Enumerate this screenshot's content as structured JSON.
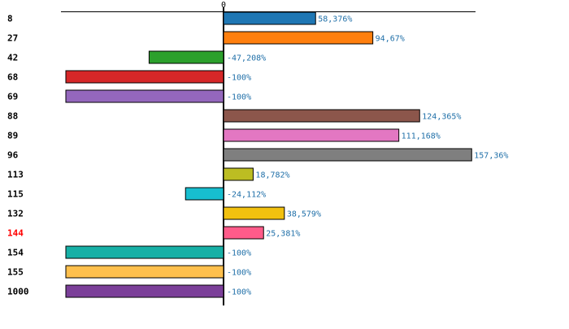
{
  "chart_data": {
    "type": "bar",
    "orientation": "horizontal",
    "zero_label": "0",
    "xlim": [
      -100,
      160
    ],
    "categories": [
      "8",
      "27",
      "42",
      "68",
      "69",
      "88",
      "89",
      "96",
      "113",
      "115",
      "132",
      "144",
      "154",
      "155",
      "1000"
    ],
    "values": [
      58.376,
      94.67,
      -47.208,
      -100,
      -100,
      124.365,
      111.168,
      157.36,
      18.782,
      -24.112,
      38.579,
      25.381,
      -100,
      -100,
      -100
    ],
    "value_labels": [
      "58,376%",
      "94,67%",
      "-47,208%",
      "-100%",
      "-100%",
      "124,365%",
      "111,168%",
      "157,36%",
      "18,782%",
      "-24,112%",
      "38,579%",
      "25,381%",
      "-100%",
      "-100%",
      "-100%"
    ],
    "colors": [
      "#1f77b4",
      "#ff7f0e",
      "#2ca02c",
      "#d62728",
      "#9467bd",
      "#8c564b",
      "#e377c2",
      "#7f7f7f",
      "#bcbd22",
      "#17becf",
      "#f2c10f",
      "#ff5b8a",
      "#17b0a6",
      "#ffc04d",
      "#7b3f99"
    ],
    "label_colors": [
      "#000000",
      "#000000",
      "#000000",
      "#000000",
      "#000000",
      "#000000",
      "#000000",
      "#000000",
      "#000000",
      "#000000",
      "#000000",
      "#ff0000",
      "#000000",
      "#000000",
      "#000000"
    ],
    "value_label_color": "#1f6fa8",
    "title": "",
    "xlabel": "",
    "ylabel": ""
  }
}
